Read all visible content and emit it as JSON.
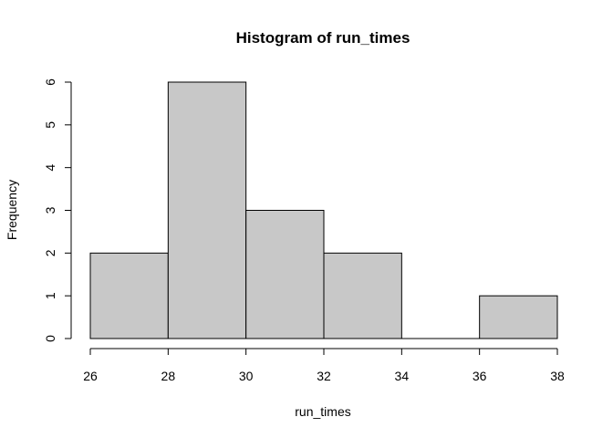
{
  "chart_data": {
    "type": "bar",
    "subtype": "histogram",
    "title": "Histogram of run_times",
    "xlabel": "run_times",
    "ylabel": "Frequency",
    "bin_edges": [
      26,
      28,
      30,
      32,
      34,
      36,
      38
    ],
    "values": [
      2,
      6,
      3,
      2,
      0,
      1
    ],
    "xlim": [
      26,
      38
    ],
    "ylim": [
      0,
      6
    ],
    "x_ticks": [
      26,
      28,
      30,
      32,
      34,
      36,
      38
    ],
    "y_ticks": [
      0,
      1,
      2,
      3,
      4,
      5,
      6
    ],
    "bar_color": "#c8c8c8",
    "edge_color": "#000000",
    "grid": false,
    "legend": "none"
  }
}
